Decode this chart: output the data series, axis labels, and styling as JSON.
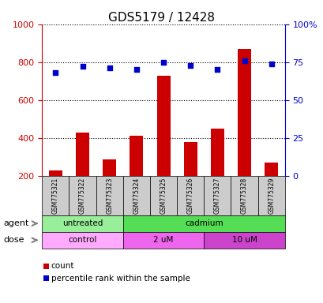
{
  "title": "GDS5179 / 12428",
  "samples": [
    "GSM775321",
    "GSM775322",
    "GSM775323",
    "GSM775324",
    "GSM775325",
    "GSM775326",
    "GSM775327",
    "GSM775328",
    "GSM775329"
  ],
  "counts": [
    230,
    430,
    285,
    410,
    730,
    380,
    450,
    870,
    270
  ],
  "percentiles": [
    68,
    72,
    71,
    70,
    75,
    73,
    70,
    76,
    74
  ],
  "ylim_left": [
    200,
    1000
  ],
  "ylim_right": [
    0,
    100
  ],
  "yticks_left": [
    200,
    400,
    600,
    800,
    1000
  ],
  "yticks_right": [
    0,
    25,
    50,
    75,
    100
  ],
  "bar_color": "#cc0000",
  "dot_color": "#0000cc",
  "agent_groups": [
    {
      "label": "untreated",
      "start": 0,
      "end": 3,
      "color": "#99ee99"
    },
    {
      "label": "cadmium",
      "start": 3,
      "end": 9,
      "color": "#55dd55"
    }
  ],
  "dose_groups": [
    {
      "label": "control",
      "start": 0,
      "end": 3,
      "color": "#ffaaff"
    },
    {
      "label": "2 uM",
      "start": 3,
      "end": 6,
      "color": "#ee66ee"
    },
    {
      "label": "10 uM",
      "start": 6,
      "end": 9,
      "color": "#cc44cc"
    }
  ],
  "row_labels": [
    "agent",
    "dose"
  ],
  "legend_count_label": "count",
  "legend_pct_label": "percentile rank within the sample",
  "bg_color": "#ffffff",
  "left_axis_color": "#cc0000",
  "right_axis_color": "#0000cc"
}
